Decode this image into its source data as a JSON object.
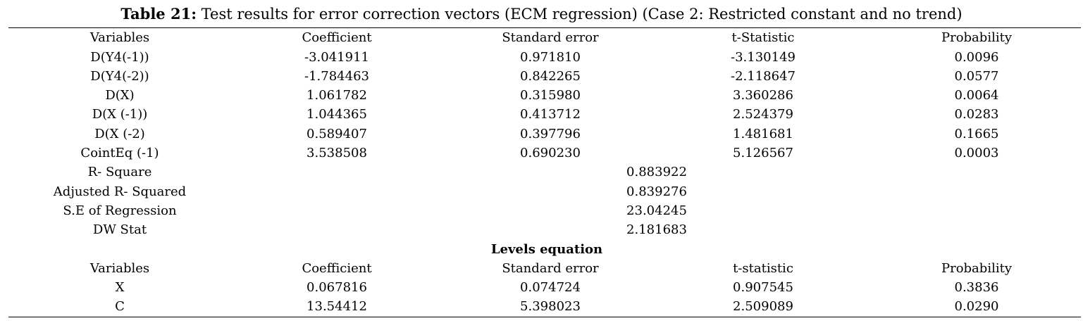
{
  "table": {
    "caption_label": "Table 21:",
    "caption_text": " Test results for error correction vectors (ECM regression) (Case 2: Restricted constant and no trend)",
    "headers": [
      "Variables",
      "Coefficient",
      "Standard error",
      "t-Statistic",
      "Probability"
    ],
    "rows": [
      [
        "D(Y4(-1))",
        "-3.041911",
        "0.971810",
        "-3.130149",
        "0.0096"
      ],
      [
        "D(Y4(-2))",
        "-1.784463",
        "0.842265",
        "-2.118647",
        "0.0577"
      ],
      [
        "D(X)",
        "1.061782",
        "0.315980",
        "3.360286",
        "0.0064"
      ],
      [
        "D(X (-1))",
        "1.044365",
        "0.413712",
        "2.524379",
        "0.0283"
      ],
      [
        "D(X (-2)",
        "0.589407",
        "0.397796",
        "1.481681",
        "0.1665"
      ],
      [
        "CointEq (-1)",
        "3.538508",
        "0.690230",
        "5.126567",
        "0.0003"
      ]
    ],
    "stats": [
      [
        "R- Square",
        "0.883922"
      ],
      [
        "Adjusted R- Squared",
        "0.839276"
      ],
      [
        "S.E of Regression",
        "23.04245"
      ],
      [
        "DW Stat",
        "2.181683"
      ]
    ],
    "levels_title": "Levels equation",
    "levels_headers": [
      "Variables",
      "Coefficient",
      "Standard error",
      "t-statistic",
      "Probability"
    ],
    "levels_rows": [
      [
        "X",
        "0.067816",
        "0.074724",
        "0.907545",
        "0.3836"
      ],
      [
        "C",
        "13.54412",
        "5.398023",
        "2.509089",
        "0.0290"
      ]
    ]
  }
}
